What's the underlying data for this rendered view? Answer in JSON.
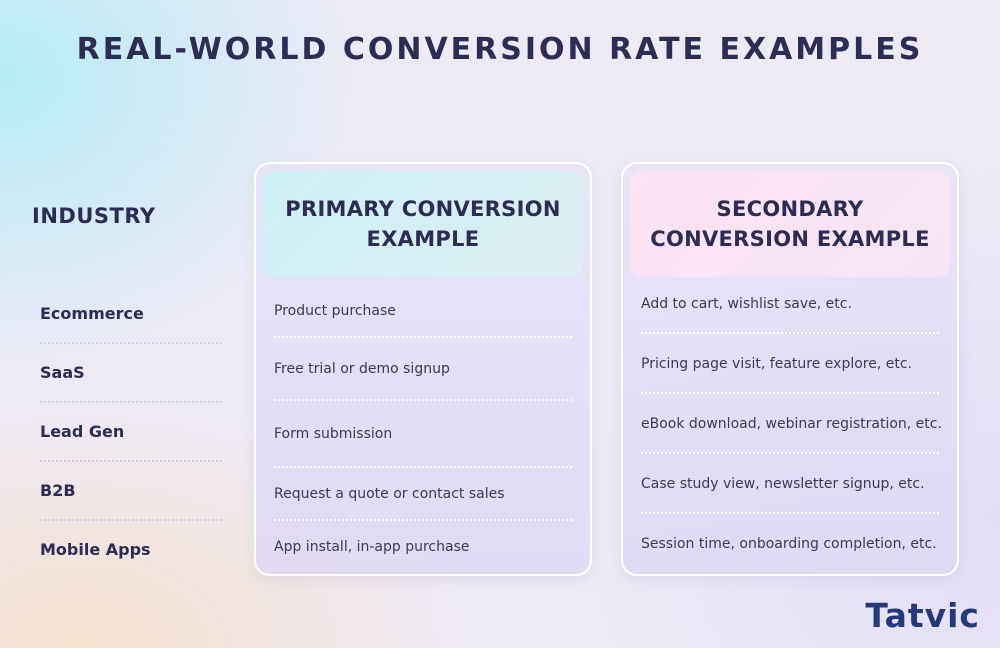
{
  "title": "REAL-WORLD CONVERSION RATE EXAMPLES",
  "industry_header": "INDUSTRY",
  "industries": [
    "Ecommerce",
    "SaaS",
    "Lead Gen",
    "B2B",
    "Mobile Apps"
  ],
  "primary": {
    "header": "PRIMARY CONVERSION EXAMPLE",
    "rows": [
      "Product purchase",
      "Free trial or demo signup",
      "Form submission",
      "Request a quote or contact sales",
      "App install, in-app purchase"
    ]
  },
  "secondary": {
    "header": "SECONDARY CONVERSION EXAMPLE",
    "rows": [
      "Add to cart, wishlist save, etc.",
      "Pricing page visit, feature explore, etc.",
      "eBook download, webinar registration, etc.",
      "Case study view, newsletter signup, etc.",
      "Session time, onboarding completion, etc."
    ]
  },
  "logo": {
    "text": "Tatvic",
    "colors": {
      "text": "#233a7a",
      "accent": "#1eb6d6"
    }
  }
}
